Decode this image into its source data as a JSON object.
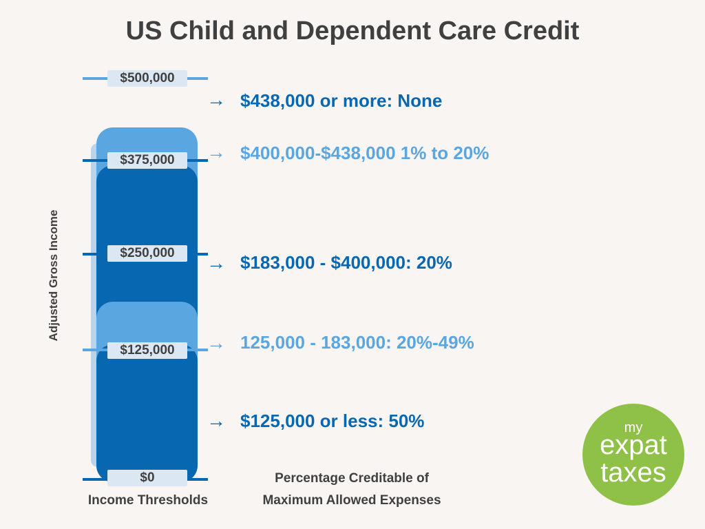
{
  "title": "US Child and Dependent Care Credit",
  "y_axis_label": "Adjusted Gross Income",
  "thresholds": [
    "$500,000",
    "$375,000",
    "$250,000",
    "$125,000",
    "$0"
  ],
  "ranges": [
    "$438,000 or more: None",
    "$400,000-$438,000 1% to 20%",
    "$183,000 - $400,000: 20%",
    "125,000 - 183,000: 20%-49%",
    "$125,000 or less: 50%"
  ],
  "arrow_glyph": "→",
  "captions": {
    "left": "Income Thresholds",
    "right_line1": "Percentage Creditable of",
    "right_line2": "Maximum Allowed Expenses"
  },
  "logo": {
    "line1": "my",
    "line2": "expat",
    "line3": "taxes"
  },
  "colors": {
    "dark_blue": "#0767b0",
    "light_blue": "#5aa6e0",
    "logo_green": "#8fc148",
    "text": "#404040"
  }
}
